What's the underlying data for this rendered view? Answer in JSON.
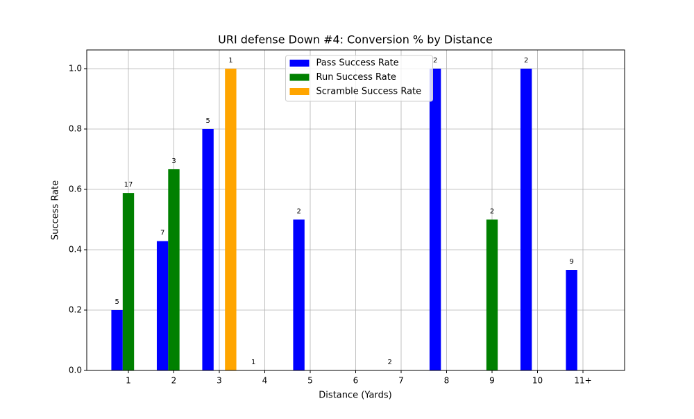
{
  "chart_data": {
    "type": "bar",
    "title": "URI defense Down #4: Conversion % by Distance",
    "x_label": "Distance (Yards)",
    "y_label": "Success Rate",
    "categories": [
      "1",
      "2",
      "3",
      "4",
      "5",
      "6",
      "7",
      "8",
      "9",
      "10",
      "11+"
    ],
    "series": [
      {
        "name": "Pass Success Rate",
        "color": "#0000ff",
        "values": [
          0.2,
          0.4286,
          0.8,
          0,
          0.5,
          null,
          0,
          1.0,
          null,
          1.0,
          0.3333
        ],
        "attempts": [
          5,
          7,
          5,
          1,
          2,
          null,
          2,
          2,
          null,
          2,
          9
        ]
      },
      {
        "name": "Run Success Rate",
        "color": "#008000",
        "values": [
          0.5882,
          0.6667,
          null,
          null,
          null,
          null,
          null,
          null,
          0.5,
          null,
          null
        ],
        "attempts": [
          17,
          3,
          null,
          null,
          null,
          null,
          null,
          null,
          2,
          null,
          null
        ]
      },
      {
        "name": "Scramble Success Rate",
        "color": "#ffa500",
        "values": [
          null,
          null,
          1.0,
          null,
          null,
          null,
          null,
          null,
          null,
          null,
          null
        ],
        "attempts": [
          null,
          null,
          1,
          null,
          null,
          null,
          null,
          null,
          null,
          null,
          null
        ]
      }
    ],
    "ylim": [
      0,
      1.062
    ],
    "yticks": [
      {
        "value": 0,
        "label": "0.0"
      },
      0.2,
      0.4,
      0.6,
      0.8,
      {
        "value": 1,
        "label": "1.0"
      }
    ],
    "grid": true,
    "legend": "upper center"
  }
}
